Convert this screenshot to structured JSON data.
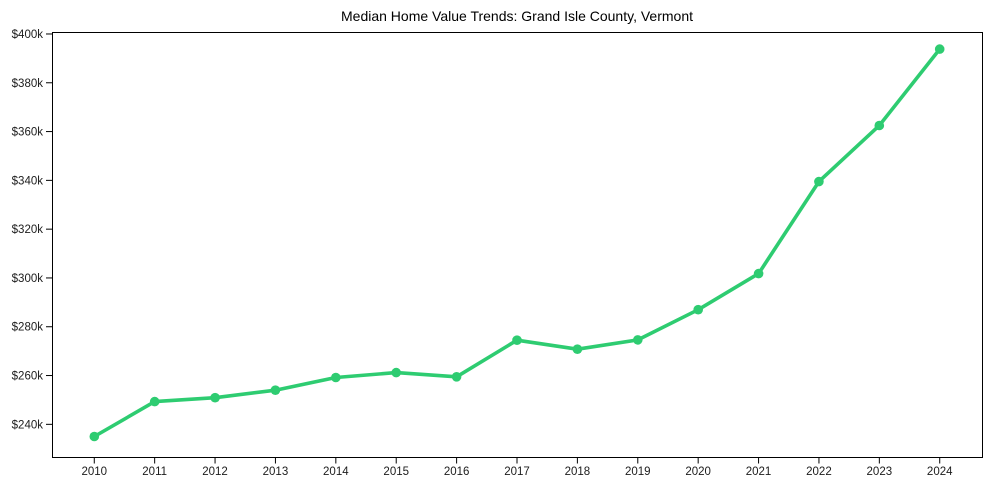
{
  "chart_data": {
    "type": "line",
    "title": "Median Home Value Trends: Grand Isle County, Vermont",
    "xlabel": "",
    "ylabel": "",
    "x": [
      2010,
      2011,
      2012,
      2013,
      2014,
      2015,
      2016,
      2017,
      2018,
      2019,
      2020,
      2021,
      2022,
      2023,
      2024
    ],
    "x_tick_labels": [
      "2010",
      "2011",
      "2012",
      "2013",
      "2014",
      "2015",
      "2016",
      "2017",
      "2018",
      "2019",
      "2020",
      "2021",
      "2022",
      "2023",
      "2024"
    ],
    "series": [
      {
        "name": "Median Home Value",
        "values": [
          235000,
          249300,
          250900,
          254000,
          259200,
          261200,
          259500,
          274500,
          270800,
          274600,
          287000,
          301800,
          339500,
          362500,
          393800
        ]
      }
    ],
    "yticks": [
      240000,
      260000,
      280000,
      300000,
      320000,
      340000,
      360000,
      380000,
      400000
    ],
    "ytick_labels": [
      "$240k",
      "$260k",
      "$280k",
      "$300k",
      "$320k",
      "$340k",
      "$360k",
      "$380k",
      "$400k"
    ],
    "xlim": [
      2009.3,
      2024.7
    ],
    "ylim": [
      226200,
      400400
    ],
    "grid": false,
    "legend": null,
    "line_color": "#2ecc71",
    "marker": "circle",
    "marker_color": "#2ecc71",
    "axis_color": "#000000",
    "tick_text_color": "#1c1c1c"
  }
}
